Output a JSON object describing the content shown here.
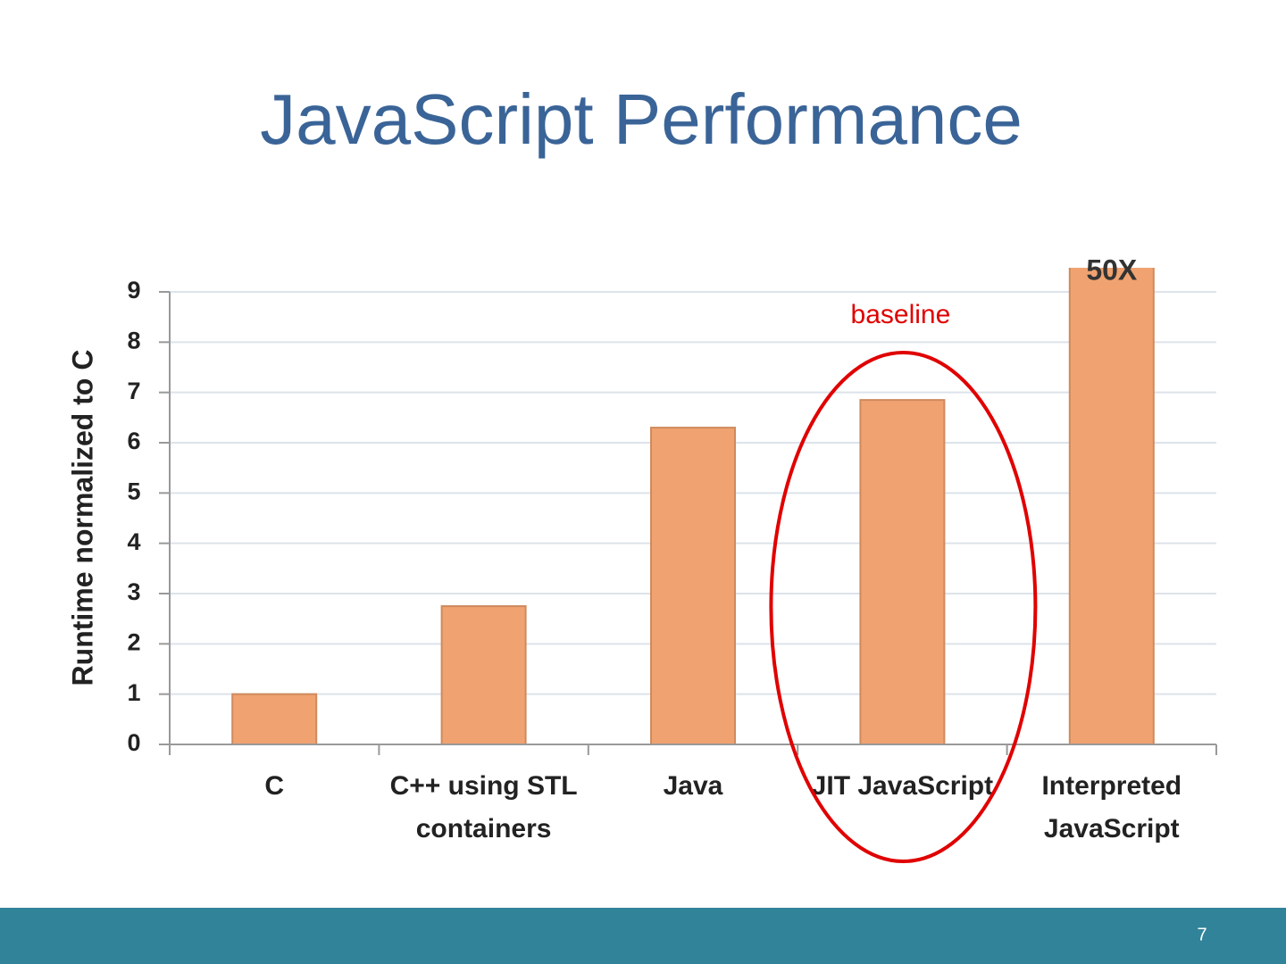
{
  "title": "JavaScript Performance",
  "page_number": "7",
  "chart_data": {
    "type": "bar",
    "y_label": "Runtime normalized to C",
    "categories": [
      "C",
      "C++ using STL\ncontainers",
      "Java",
      "JIT JavaScript",
      "Interpreted\nJavaScript"
    ],
    "values": [
      1,
      2.75,
      6.3,
      6.85,
      50
    ],
    "value_labels": [
      null,
      null,
      null,
      null,
      "50X"
    ],
    "color": "#f0a270",
    "ylim": [
      0,
      9
    ],
    "yticks": [
      0,
      1,
      2,
      3,
      4,
      5,
      6,
      7,
      8,
      9
    ],
    "grid": true,
    "annotation": "baseline",
    "annotation_color": "#e00000",
    "highlight_category": 3
  }
}
